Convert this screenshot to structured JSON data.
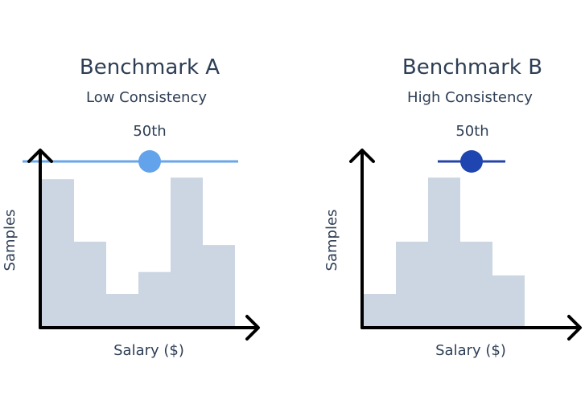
{
  "chart_data": [
    {
      "type": "bar",
      "title": "Benchmark A",
      "subtitle": "Low Consistency",
      "xlabel": "Salary ($)",
      "ylabel": "Samples",
      "values": [
        88,
        51,
        20,
        33,
        89,
        49
      ],
      "ylim": [
        0,
        100
      ],
      "grid": false,
      "range_line": {
        "label": "50th",
        "range": [
          -0.6,
          6.1
        ],
        "marker": 3.35,
        "color": "#63a3ec",
        "line_color": "#6aa5e8"
      },
      "bar_color": "#cbd6e2"
    },
    {
      "type": "bar",
      "title": "Benchmark B",
      "subtitle": "High Consistency",
      "xlabel": "Salary ($)",
      "ylabel": "Samples",
      "values": [
        20,
        51,
        89,
        51,
        31
      ],
      "ylim": [
        0,
        100
      ],
      "grid": false,
      "range_line": {
        "label": "50th",
        "range": [
          2.3,
          4.4
        ],
        "marker": 3.35,
        "color": "#1f45b0",
        "line_color": "#2443a8"
      },
      "bar_color": "#cbd6e2"
    }
  ],
  "colors": {
    "text": "#2d3e55",
    "axis": "#000000"
  }
}
